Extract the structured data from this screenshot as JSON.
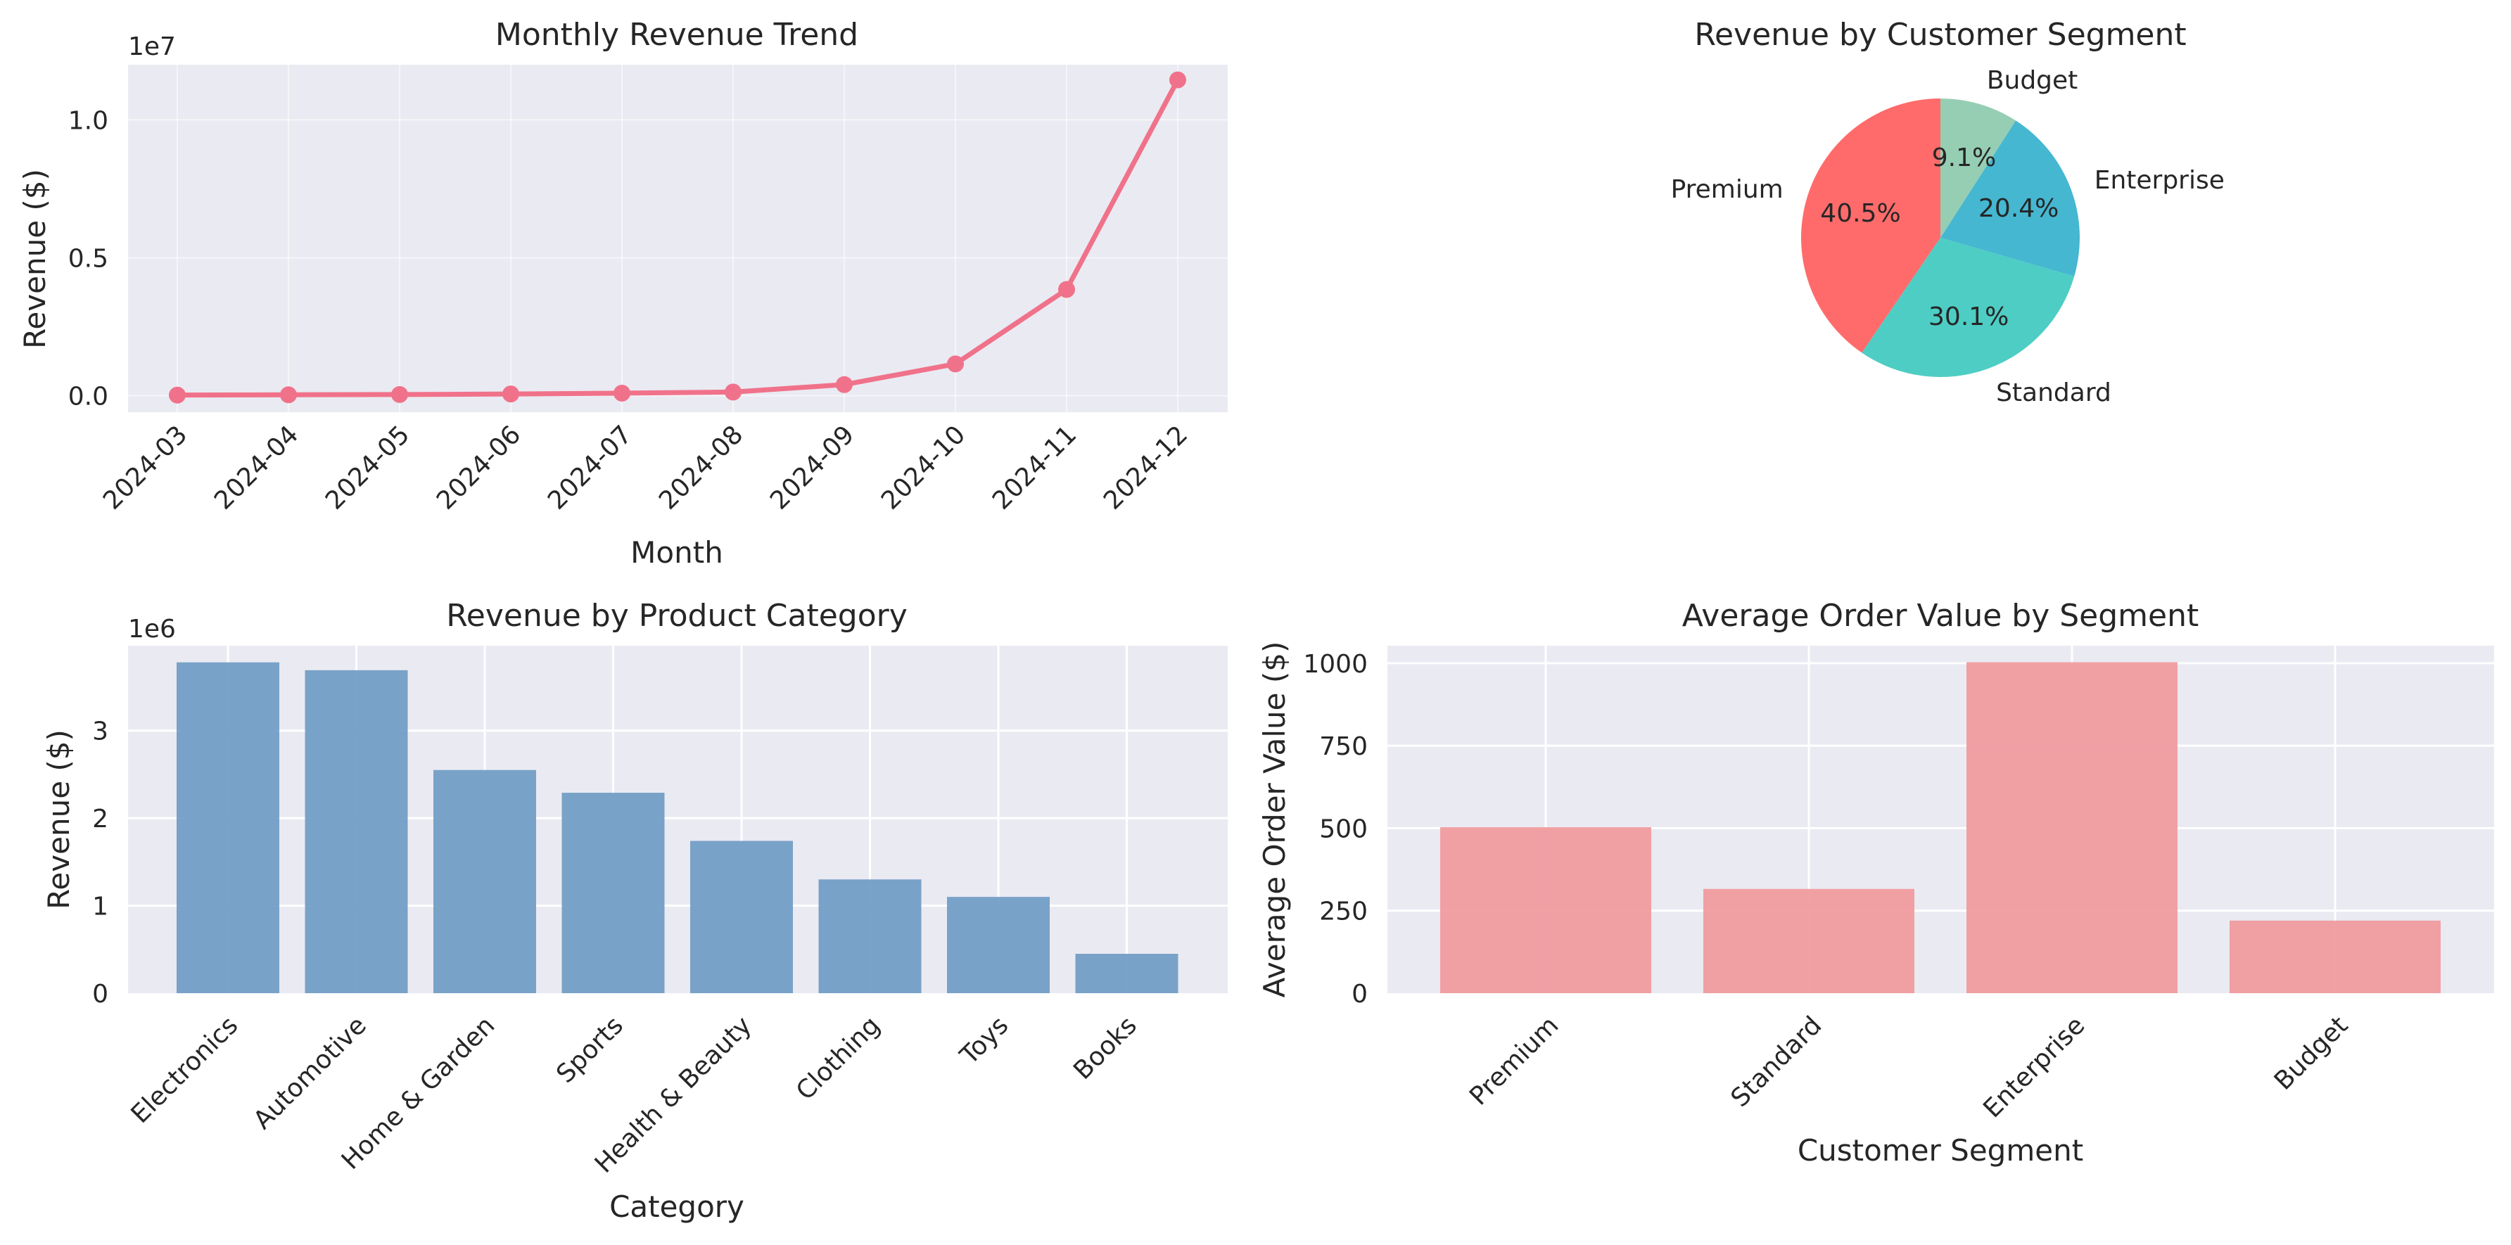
{
  "chart_data": [
    {
      "type": "line",
      "title": "Monthly Revenue Trend",
      "xlabel": "Month",
      "ylabel": "Revenue ($)",
      "y_offset_label": "1e7",
      "categories": [
        "2024-03",
        "2024-04",
        "2024-05",
        "2024-06",
        "2024-07",
        "2024-08",
        "2024-09",
        "2024-10",
        "2024-11",
        "2024-12"
      ],
      "values": [
        0.002,
        0.003,
        0.004,
        0.006,
        0.009,
        0.013,
        0.04,
        0.115,
        0.385,
        1.145
      ],
      "ylim": [
        -0.06,
        1.2
      ],
      "yticks": [
        0.0,
        0.5,
        1.0
      ],
      "ytick_labels": [
        "0.0",
        "0.5",
        "1.0"
      ],
      "color": "#f0728a",
      "grid": true
    },
    {
      "type": "pie",
      "title": "Revenue by Customer Segment",
      "labels": [
        "Premium",
        "Standard",
        "Enterprise",
        "Budget"
      ],
      "values": [
        40.5,
        30.1,
        20.4,
        9.1
      ],
      "pct_labels": [
        "40.5%",
        "30.1%",
        "20.4%",
        "9.1%"
      ],
      "colors": [
        "#ff6b6b",
        "#4ecdc4",
        "#45b7d1",
        "#96ceb4"
      ],
      "startangle": 90
    },
    {
      "type": "bar",
      "title": "Revenue by Product Category",
      "xlabel": "Category",
      "ylabel": "Revenue ($)",
      "y_offset_label": "1e6",
      "categories": [
        "Electronics",
        "Automotive",
        "Home & Garden",
        "Sports",
        "Health & Beauty",
        "Clothing",
        "Toys",
        "Books"
      ],
      "values": [
        3.78,
        3.69,
        2.55,
        2.29,
        1.74,
        1.3,
        1.1,
        0.45
      ],
      "ylim": [
        0,
        3.97
      ],
      "yticks": [
        0,
        1,
        2,
        3
      ],
      "ytick_labels": [
        "0",
        "1",
        "2",
        "3"
      ],
      "color": "#6f9bc4",
      "grid": true
    },
    {
      "type": "bar",
      "title": "Average Order Value by Segment",
      "xlabel": "Customer Segment",
      "ylabel": "Average Order Value ($)",
      "categories": [
        "Premium",
        "Standard",
        "Enterprise",
        "Budget"
      ],
      "values": [
        503,
        316,
        1003,
        220
      ],
      "ylim": [
        0,
        1053
      ],
      "yticks": [
        0,
        250,
        500,
        750,
        1000
      ],
      "ytick_labels": [
        "0",
        "250",
        "500",
        "750",
        "1000"
      ],
      "color": "#f0999c",
      "grid": true
    }
  ]
}
